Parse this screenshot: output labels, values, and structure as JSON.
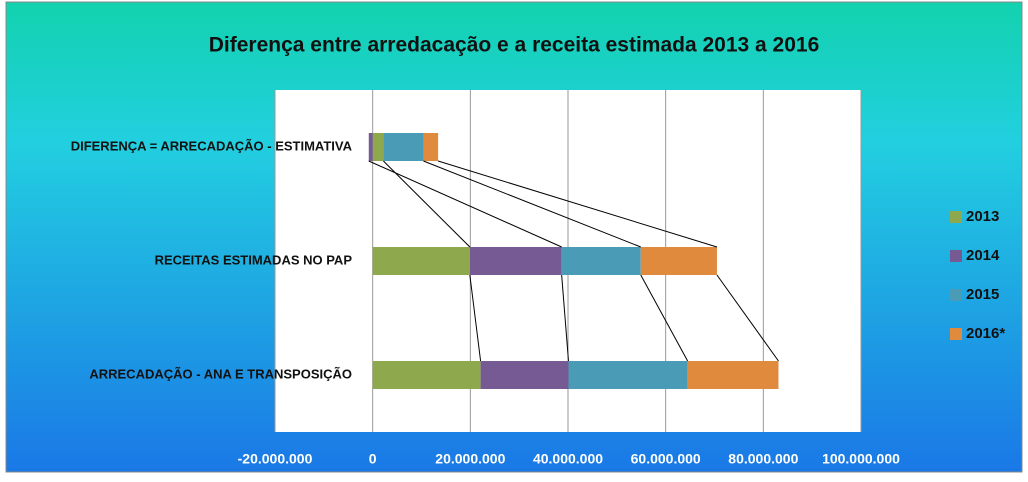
{
  "chart_data": {
    "type": "stacked_barh",
    "title": "Diferença entre arredacação e a receita estimada 2013 a 2016",
    "categories": [
      "ARRECADAÇÃO - ANA E TRANSPOSIÇÃO",
      "RECEITAS ESTIMADAS NO PAP",
      "DIFERENÇA = ARRECADAÇÃO - ESTIMATIVA"
    ],
    "series": [
      {
        "name": "2013",
        "color": "#8ea84e",
        "values": [
          22100000,
          19900000,
          2200000
        ]
      },
      {
        "name": "2014",
        "color": "#765a94",
        "values": [
          18000000,
          18800000,
          -800000
        ]
      },
      {
        "name": "2015",
        "color": "#4a9bb5",
        "values": [
          24400000,
          16200000,
          8200000
        ]
      },
      {
        "name": "2016*",
        "color": "#e08a3e",
        "values": [
          18600000,
          15600000,
          3000000
        ]
      }
    ],
    "xlim": [
      -20000000,
      100000000
    ],
    "xticks": [
      {
        "value": -20000000,
        "label": "-20.000.000"
      },
      0,
      {
        "value": 20000000,
        "label": "20.000.000"
      },
      {
        "value": 40000000,
        "label": "40.000.000"
      },
      {
        "value": 60000000,
        "label": "60.000.000"
      },
      {
        "value": 80000000,
        "label": "80.000.000"
      },
      {
        "value": 100000000,
        "label": "100.000.000"
      }
    ],
    "grid": true,
    "legend": "right"
  }
}
